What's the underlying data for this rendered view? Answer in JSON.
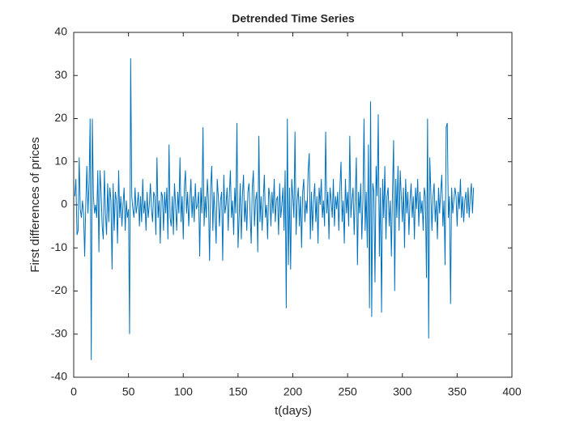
{
  "chart_data": {
    "type": "line",
    "title": "Detrended Time Series",
    "x_label": "t(days)",
    "y_label": "First differences of prices",
    "xlim": [
      0,
      400
    ],
    "xticks": [
      0,
      50,
      100,
      150,
      200,
      250,
      300,
      350,
      400
    ],
    "ylim": [
      -40,
      40
    ],
    "yticks": [
      -40,
      -30,
      -20,
      -10,
      0,
      10,
      20,
      30,
      40
    ],
    "grid": false,
    "x": [
      1,
      2,
      3,
      4,
      5,
      6,
      7,
      8,
      9,
      10,
      11,
      12,
      13,
      14,
      15,
      16,
      17,
      18,
      19,
      20,
      21,
      22,
      23,
      24,
      25,
      26,
      27,
      28,
      29,
      30,
      31,
      32,
      33,
      34,
      35,
      36,
      37,
      38,
      39,
      40,
      41,
      42,
      43,
      44,
      45,
      46,
      47,
      48,
      49,
      50,
      51,
      52,
      53,
      54,
      55,
      56,
      57,
      58,
      59,
      60,
      61,
      62,
      63,
      64,
      65,
      66,
      67,
      68,
      69,
      70,
      71,
      72,
      73,
      74,
      75,
      76,
      77,
      78,
      79,
      80,
      81,
      82,
      83,
      84,
      85,
      86,
      87,
      88,
      89,
      90,
      91,
      92,
      93,
      94,
      95,
      96,
      97,
      98,
      99,
      100,
      101,
      102,
      103,
      104,
      105,
      106,
      107,
      108,
      109,
      110,
      111,
      112,
      113,
      114,
      115,
      116,
      117,
      118,
      119,
      120,
      121,
      122,
      123,
      124,
      125,
      126,
      127,
      128,
      129,
      130,
      131,
      132,
      133,
      134,
      135,
      136,
      137,
      138,
      139,
      140,
      141,
      142,
      143,
      144,
      145,
      146,
      147,
      148,
      149,
      150,
      151,
      152,
      153,
      154,
      155,
      156,
      157,
      158,
      159,
      160,
      161,
      162,
      163,
      164,
      165,
      166,
      167,
      168,
      169,
      170,
      171,
      172,
      173,
      174,
      175,
      176,
      177,
      178,
      179,
      180,
      181,
      182,
      183,
      184,
      185,
      186,
      187,
      188,
      189,
      190,
      191,
      192,
      193,
      194,
      195,
      196,
      197,
      198,
      199,
      200,
      201,
      202,
      203,
      204,
      205,
      206,
      207,
      208,
      209,
      210,
      211,
      212,
      213,
      214,
      215,
      216,
      217,
      218,
      219,
      220,
      221,
      222,
      223,
      224,
      225,
      226,
      227,
      228,
      229,
      230,
      231,
      232,
      233,
      234,
      235,
      236,
      237,
      238,
      239,
      240,
      241,
      242,
      243,
      244,
      245,
      246,
      247,
      248,
      249,
      250,
      251,
      252,
      253,
      254,
      255,
      256,
      257,
      258,
      259,
      260,
      261,
      262,
      263,
      264,
      265,
      266,
      267,
      268,
      269,
      270,
      271,
      272,
      273,
      274,
      275,
      276,
      277,
      278,
      279,
      280,
      281,
      282,
      283,
      284,
      285,
      286,
      287,
      288,
      289,
      290,
      291,
      292,
      293,
      294,
      295,
      296,
      297,
      298,
      299,
      300,
      301,
      302,
      303,
      304,
      305,
      306,
      307,
      308,
      309,
      310,
      311,
      312,
      313,
      314,
      315,
      316,
      317,
      318,
      319,
      320,
      321,
      322,
      323,
      324,
      325,
      326,
      327,
      328,
      329,
      330,
      331,
      332,
      333,
      334,
      335,
      336,
      337,
      338,
      339,
      340,
      341,
      342,
      343,
      344,
      345,
      346,
      347,
      348,
      349,
      350,
      351,
      352,
      353,
      354,
      355,
      356,
      357,
      358,
      359,
      360,
      361,
      362,
      363,
      364,
      365
    ],
    "series": [
      {
        "name": "First differences",
        "color": "#0072bd",
        "values": [
          2,
          6,
          -7,
          -6,
          11,
          -1,
          -3,
          1,
          -2,
          -12,
          0,
          9,
          -2,
          5,
          20,
          -36,
          20,
          2,
          -2,
          0,
          -3,
          8,
          -11,
          8,
          3,
          -5,
          -8,
          8,
          -2,
          -7,
          5,
          -4,
          4,
          1,
          -15,
          5,
          -6,
          3,
          1,
          -9,
          8,
          -3,
          2,
          -5,
          0,
          4,
          -6,
          1,
          -3,
          -1,
          -30,
          34,
          2,
          -1,
          -3,
          4,
          -2,
          0,
          3,
          -5,
          2,
          -4,
          6,
          -2,
          1,
          -6,
          3,
          -3,
          0,
          5,
          -1,
          -4,
          3,
          2,
          -7,
          11,
          -3,
          1,
          -9,
          3,
          2,
          -6,
          3,
          -2,
          4,
          -8,
          14,
          -3,
          -5,
          2,
          -7,
          5,
          0,
          -6,
          3,
          -2,
          11,
          -4,
          2,
          -8,
          4,
          8,
          -2,
          3,
          -5,
          1,
          6,
          -3,
          2,
          -4,
          5,
          -1,
          0,
          3,
          -12,
          4,
          -2,
          18,
          -5,
          2,
          -3,
          6,
          1,
          -13,
          4,
          9,
          -6,
          3,
          -2,
          -9,
          6,
          2,
          -5,
          1,
          3,
          -13,
          7,
          -2,
          0,
          4,
          -6,
          2,
          8,
          -3,
          1,
          -7,
          4,
          -2,
          19,
          -10,
          -3,
          5,
          -8,
          2,
          7,
          -4,
          1,
          -6,
          3,
          5,
          -2,
          -9,
          4,
          8,
          -5,
          1,
          3,
          -11,
          16,
          -4,
          2,
          -6,
          1,
          7,
          -3,
          0,
          -8,
          4,
          2,
          -5,
          3,
          -2,
          6,
          -4,
          1,
          2,
          -7,
          5,
          -3,
          0,
          4,
          -6,
          8,
          -24,
          20,
          -14,
          4,
          -15,
          6,
          2,
          -3,
          17,
          -7,
          1,
          4,
          -5,
          2,
          -10,
          3,
          6,
          -4,
          1,
          -2,
          8,
          12,
          -8,
          3,
          -6,
          1,
          5,
          -4,
          2,
          -9,
          4,
          0,
          6,
          -3,
          1,
          -5,
          17,
          -2,
          3,
          -8,
          4,
          1,
          -3,
          6,
          -5,
          2,
          -1,
          3,
          -6,
          4,
          10,
          -4,
          1,
          -9,
          6,
          -2,
          3,
          -5,
          16,
          -3,
          1,
          4,
          -7,
          2,
          11,
          -14,
          3,
          -2,
          5,
          -8,
          1,
          20,
          -6,
          3,
          -10,
          14,
          -24,
          24,
          -26,
          5,
          3,
          -18,
          9,
          2,
          21,
          -12,
          4,
          -25,
          6,
          -3,
          9,
          -8,
          2,
          4,
          -5,
          1,
          -12,
          3,
          15,
          -20,
          6,
          -3,
          9,
          -6,
          8,
          2,
          -4,
          4,
          -10,
          6,
          -2,
          3,
          -7,
          1,
          5,
          -3,
          2,
          -8,
          4,
          -1,
          6,
          -5,
          3,
          -2,
          1,
          -6,
          4,
          2,
          -17,
          20,
          -31,
          11,
          3,
          -6,
          2,
          5,
          -4,
          1,
          -8,
          4,
          -2,
          3,
          7,
          -5,
          1,
          -14,
          18,
          19,
          -3,
          2,
          -23,
          4,
          -2,
          1,
          4,
          2,
          -5,
          3,
          -1,
          6,
          -3,
          2,
          -4,
          1,
          3,
          -2,
          4,
          -3,
          2,
          5,
          -2,
          4
        ]
      }
    ]
  }
}
